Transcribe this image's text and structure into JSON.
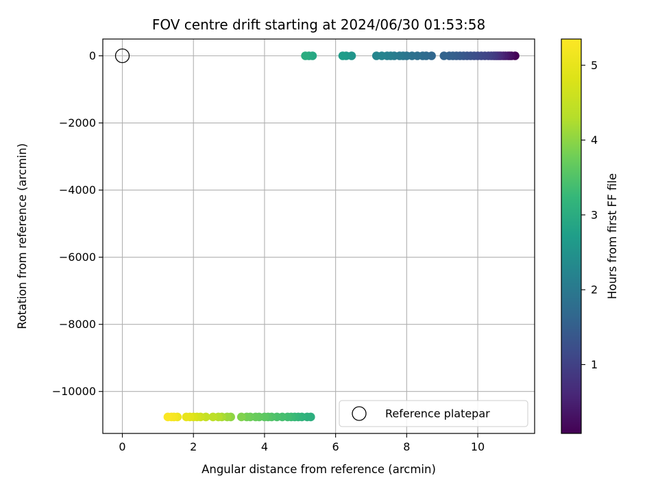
{
  "chart_data": {
    "type": "scatter",
    "title": "FOV centre drift starting at 2024/06/30 01:53:58",
    "xlabel": "Angular distance from reference (arcmin)",
    "ylabel": "Rotation from reference (arcmin)",
    "xlim": [
      -0.55,
      11.6
    ],
    "ylim": [
      -11250,
      500
    ],
    "xticks": [
      0,
      2,
      4,
      6,
      8,
      10
    ],
    "xtick_labels": [
      "0",
      "2",
      "4",
      "6",
      "8",
      "10"
    ],
    "yticks": [
      0,
      -2000,
      -4000,
      -6000,
      -8000,
      -10000
    ],
    "ytick_labels": [
      "0",
      "−2000",
      "−4000",
      "−6000",
      "−8000",
      "−10000"
    ],
    "grid": true,
    "colormap": "viridis",
    "colorbar": {
      "label": "Hours from first FF file",
      "range": [
        0.08,
        5.35
      ],
      "ticks": [
        1,
        2,
        3,
        4,
        5
      ],
      "tick_labels": [
        "1",
        "2",
        "3",
        "4",
        "5"
      ]
    },
    "legend": {
      "placement": "lower right",
      "entries": [
        {
          "label": "Reference platepar",
          "marker": "open-circle"
        }
      ]
    },
    "reference_point": {
      "x": 0,
      "y": 0
    },
    "series": [
      {
        "x": [
          11.05,
          10.95,
          10.9,
          10.85,
          10.78,
          10.72,
          10.65,
          10.6,
          10.55,
          10.5,
          10.45,
          10.38,
          10.3,
          10.2,
          10.1,
          10.0,
          9.9,
          9.8,
          9.7,
          9.6,
          9.5,
          9.4,
          9.3,
          9.2,
          9.05,
          8.7,
          8.55,
          8.45,
          8.3,
          8.15,
          8.0,
          7.9,
          7.8,
          7.65,
          7.55,
          7.45,
          7.3,
          7.15,
          6.45,
          6.3,
          6.2,
          5.35,
          5.25,
          5.15,
          5.3,
          5.2,
          5.05,
          4.95,
          4.85,
          4.75,
          4.65,
          4.5,
          4.35,
          4.2,
          4.1,
          4.0,
          3.85,
          3.75,
          3.6,
          3.5,
          3.35,
          3.05,
          2.95,
          2.8,
          2.7,
          2.55,
          2.35,
          2.2,
          2.1,
          2.0,
          1.9,
          1.8,
          1.55,
          1.45,
          1.38,
          1.28
        ],
        "y": [
          0,
          0,
          0,
          0,
          0,
          0,
          0,
          0,
          0,
          0,
          0,
          0,
          0,
          0,
          0,
          0,
          0,
          0,
          0,
          0,
          0,
          0,
          0,
          0,
          0,
          0,
          0,
          0,
          0,
          0,
          0,
          0,
          0,
          0,
          0,
          0,
          0,
          0,
          0,
          0,
          0,
          0,
          0,
          0,
          -10760,
          -10760,
          -10760,
          -10760,
          -10760,
          -10760,
          -10760,
          -10760,
          -10760,
          -10760,
          -10760,
          -10760,
          -10760,
          -10760,
          -10760,
          -10760,
          -10760,
          -10760,
          -10760,
          -10760,
          -10760,
          -10760,
          -10760,
          -10760,
          -10760,
          -10760,
          -10760,
          -10760,
          -10760,
          -10760,
          -10760,
          -10760
        ],
        "c": [
          0.1,
          0.18,
          0.25,
          0.32,
          0.4,
          0.47,
          0.55,
          0.62,
          0.7,
          0.77,
          0.85,
          0.92,
          1.0,
          1.05,
          1.1,
          1.15,
          1.2,
          1.25,
          1.3,
          1.35,
          1.4,
          1.45,
          1.5,
          1.55,
          1.6,
          1.65,
          1.7,
          1.75,
          1.8,
          1.85,
          1.9,
          1.95,
          2.0,
          2.05,
          2.1,
          2.15,
          2.2,
          2.25,
          2.55,
          2.62,
          2.7,
          2.9,
          2.95,
          3.0,
          3.05,
          3.1,
          3.15,
          3.2,
          3.25,
          3.3,
          3.35,
          3.4,
          3.45,
          3.5,
          3.55,
          3.6,
          3.65,
          3.7,
          3.75,
          3.8,
          3.9,
          4.0,
          4.1,
          4.2,
          4.3,
          4.4,
          4.5,
          4.6,
          4.7,
          4.8,
          4.9,
          5.0,
          5.1,
          5.2,
          5.25,
          5.3
        ]
      }
    ]
  }
}
